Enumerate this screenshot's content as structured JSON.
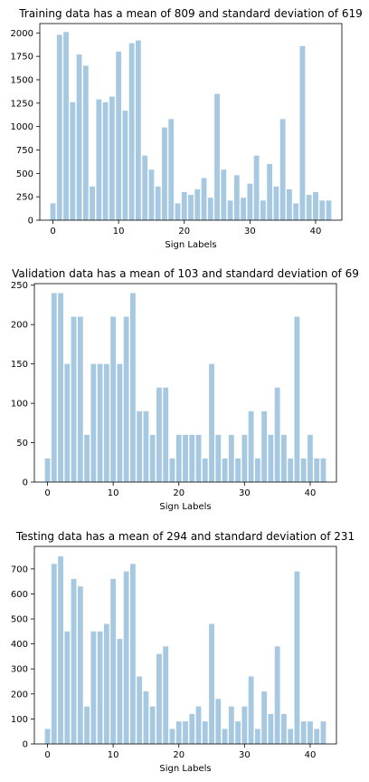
{
  "chart_data": [
    {
      "type": "bar",
      "title": "Training data has a mean of 809 and standard deviation of 619",
      "xlabel": "Sign Labels",
      "ylabel": "",
      "color": "#a6c8e0",
      "xlim": [
        -2,
        44
      ],
      "ylim": [
        0,
        2100
      ],
      "xticks": [
        0,
        10,
        20,
        30,
        40
      ],
      "yticks": [
        0,
        250,
        500,
        750,
        1000,
        1250,
        1500,
        1750,
        2000
      ],
      "categories": [
        0,
        1,
        2,
        3,
        4,
        5,
        6,
        7,
        8,
        9,
        10,
        11,
        12,
        13,
        14,
        15,
        16,
        17,
        18,
        19,
        20,
        21,
        22,
        23,
        24,
        25,
        26,
        27,
        28,
        29,
        30,
        31,
        32,
        33,
        34,
        35,
        36,
        37,
        38,
        39,
        40,
        41,
        42
      ],
      "values": [
        180,
        1980,
        2010,
        1260,
        1770,
        1650,
        360,
        1290,
        1260,
        1320,
        1800,
        1170,
        1890,
        1920,
        690,
        540,
        360,
        990,
        1080,
        180,
        300,
        270,
        330,
        450,
        240,
        1350,
        540,
        210,
        480,
        240,
        390,
        690,
        210,
        600,
        360,
        1080,
        330,
        180,
        1860,
        270,
        300,
        210,
        210
      ]
    },
    {
      "type": "bar",
      "title": "Validation data has a mean of 103 and standard deviation of 69",
      "xlabel": "Sign Labels",
      "ylabel": "",
      "color": "#a6c8e0",
      "xlim": [
        -2,
        44
      ],
      "ylim": [
        0,
        252
      ],
      "xticks": [
        0,
        10,
        20,
        30,
        40
      ],
      "yticks": [
        0,
        50,
        100,
        150,
        200,
        250
      ],
      "categories": [
        0,
        1,
        2,
        3,
        4,
        5,
        6,
        7,
        8,
        9,
        10,
        11,
        12,
        13,
        14,
        15,
        16,
        17,
        18,
        19,
        20,
        21,
        22,
        23,
        24,
        25,
        26,
        27,
        28,
        29,
        30,
        31,
        32,
        33,
        34,
        35,
        36,
        37,
        38,
        39,
        40,
        41,
        42
      ],
      "values": [
        30,
        240,
        240,
        150,
        210,
        210,
        60,
        150,
        150,
        150,
        210,
        150,
        210,
        240,
        90,
        90,
        60,
        120,
        120,
        30,
        60,
        60,
        60,
        60,
        30,
        150,
        60,
        30,
        60,
        30,
        60,
        90,
        30,
        90,
        60,
        120,
        60,
        30,
        210,
        30,
        60,
        30,
        30
      ]
    },
    {
      "type": "bar",
      "title": "Testing data has a mean of 294 and standard deviation of 231",
      "xlabel": "Sign Labels",
      "ylabel": "",
      "color": "#a6c8e0",
      "xlim": [
        -2,
        44
      ],
      "ylim": [
        0,
        790
      ],
      "xticks": [
        0,
        10,
        20,
        30,
        40
      ],
      "yticks": [
        0,
        100,
        200,
        300,
        400,
        500,
        600,
        700
      ],
      "categories": [
        0,
        1,
        2,
        3,
        4,
        5,
        6,
        7,
        8,
        9,
        10,
        11,
        12,
        13,
        14,
        15,
        16,
        17,
        18,
        19,
        20,
        21,
        22,
        23,
        24,
        25,
        26,
        27,
        28,
        29,
        30,
        31,
        32,
        33,
        34,
        35,
        36,
        37,
        38,
        39,
        40,
        41,
        42
      ],
      "values": [
        60,
        720,
        750,
        450,
        660,
        630,
        150,
        450,
        450,
        480,
        660,
        420,
        690,
        720,
        270,
        210,
        150,
        360,
        390,
        60,
        90,
        90,
        120,
        150,
        90,
        480,
        180,
        60,
        150,
        90,
        150,
        270,
        60,
        210,
        120,
        390,
        120,
        60,
        690,
        90,
        90,
        60,
        90
      ]
    }
  ]
}
